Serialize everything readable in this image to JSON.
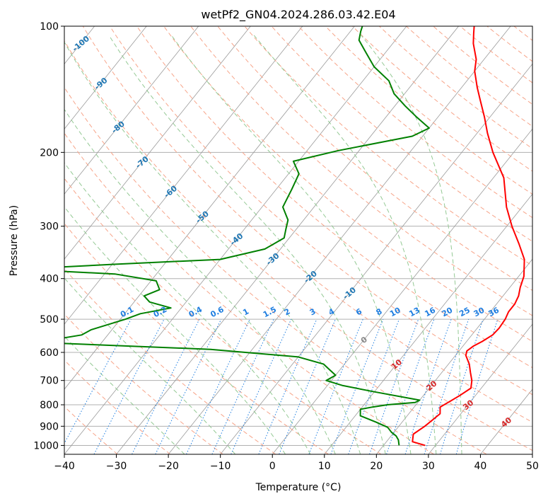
{
  "chart_data": {
    "type": "line",
    "diagram": "skew-T log-P",
    "title": "wetPf2_GN04.2024.286.03.42.E04",
    "xlabel": "Temperature (°C)",
    "ylabel": "Pressure (hPa)",
    "xlim": [
      -40,
      50
    ],
    "ylim": [
      1050,
      100
    ],
    "y_scale": "log",
    "x_ticks": [
      "−40",
      "−30",
      "−20",
      "−10",
      "0",
      "10",
      "20",
      "30",
      "40",
      "50"
    ],
    "y_ticks": [
      "100",
      "200",
      "300",
      "400",
      "500",
      "600",
      "700",
      "800",
      "900",
      "1000"
    ],
    "grid": true,
    "series": [
      {
        "color": "#ff0000",
        "points": [
          [
            28,
            1000
          ],
          [
            25,
            980
          ],
          [
            24.5,
            960
          ],
          [
            24,
            940
          ],
          [
            25,
            900
          ],
          [
            25.5,
            870
          ],
          [
            26,
            840
          ],
          [
            25,
            810
          ],
          [
            26,
            785
          ],
          [
            27,
            760
          ],
          [
            28,
            730
          ],
          [
            27,
            700
          ],
          [
            25.5,
            670
          ],
          [
            24,
            640
          ],
          [
            22,
            610
          ],
          [
            21.5,
            595
          ],
          [
            22,
            580
          ],
          [
            23,
            565
          ],
          [
            24,
            545
          ],
          [
            24.2,
            525
          ],
          [
            24,
            500
          ],
          [
            23.5,
            480
          ],
          [
            23.5,
            460
          ],
          [
            23,
            440
          ],
          [
            22,
            420
          ],
          [
            21,
            395
          ],
          [
            18.5,
            360
          ],
          [
            15,
            330
          ],
          [
            11,
            300
          ],
          [
            7,
            270
          ],
          [
            2,
            230
          ],
          [
            -4,
            200
          ],
          [
            -8,
            180
          ],
          [
            -11,
            165
          ],
          [
            -14.5,
            150
          ],
          [
            -17,
            140
          ],
          [
            -20,
            128
          ],
          [
            -21.5,
            120
          ],
          [
            -24.5,
            110
          ],
          [
            -26,
            104
          ],
          [
            -27,
            100
          ]
        ]
      },
      {
        "color": "#008000",
        "points": [
          [
            23,
            1000
          ],
          [
            22,
            970
          ],
          [
            21,
            950
          ],
          [
            19.5,
            930
          ],
          [
            18,
            905
          ],
          [
            15,
            880
          ],
          [
            11,
            850
          ],
          [
            10,
            820
          ],
          [
            12,
            810
          ],
          [
            14.5,
            800
          ],
          [
            19.5,
            790
          ],
          [
            20,
            780
          ],
          [
            10,
            745
          ],
          [
            3,
            720
          ],
          [
            -1,
            700
          ],
          [
            0,
            680
          ],
          [
            -2,
            660
          ],
          [
            -4,
            640
          ],
          [
            -10,
            615
          ],
          [
            -28,
            590
          ],
          [
            -59,
            570
          ],
          [
            -60,
            560
          ],
          [
            -55,
            545
          ],
          [
            -54,
            530
          ],
          [
            -49,
            500
          ],
          [
            -47,
            485
          ],
          [
            -42,
            470
          ],
          [
            -47,
            455
          ],
          [
            -49,
            440
          ],
          [
            -47,
            425
          ],
          [
            -49,
            405
          ],
          [
            -58,
            390
          ],
          [
            -77,
            380
          ],
          [
            -60,
            370
          ],
          [
            -40,
            360
          ],
          [
            -33,
            340
          ],
          [
            -31,
            320
          ],
          [
            -32,
            305
          ],
          [
            -33,
            290
          ],
          [
            -36,
            270
          ],
          [
            -37,
            245
          ],
          [
            -38,
            225
          ],
          [
            -41,
            210
          ],
          [
            -34,
            198
          ],
          [
            -22,
            183
          ],
          [
            -20,
            175
          ],
          [
            -24,
            165
          ],
          [
            -28,
            155
          ],
          [
            -32,
            145
          ],
          [
            -35,
            135
          ],
          [
            -40,
            125
          ],
          [
            -44,
            115
          ],
          [
            -47,
            108
          ],
          [
            -48,
            103
          ],
          [
            -48.5,
            100
          ]
        ]
      }
    ],
    "isotherm_spacing_C": 10,
    "dry_adiabats_theta_K": [
      190,
      200,
      210,
      220,
      230,
      240,
      250,
      260,
      270,
      280,
      290,
      300,
      310,
      320,
      330,
      340,
      350,
      360,
      370,
      380,
      390,
      400,
      410,
      420,
      430,
      440,
      450,
      460,
      470,
      480,
      490,
      500,
      510,
      520,
      530,
      540,
      550,
      560,
      570,
      580,
      590,
      600,
      610,
      620,
      630,
      640,
      650
    ],
    "moist_adiabats_thetaw_C": [
      -20,
      -10,
      0,
      5,
      10,
      15,
      20,
      25,
      30,
      35
    ],
    "mixing_ratio_lines_gkg": [
      "0.1",
      "0.2",
      "0.4",
      "0.6",
      "1",
      "1.5",
      "2",
      "3",
      "4",
      "6",
      "8",
      "10",
      "13",
      "16",
      "20",
      "25",
      "30",
      "36"
    ],
    "isotherm_labels": [
      "-100",
      "-90",
      "-80",
      "-70",
      "-60",
      "-50",
      "-40",
      "-30",
      "-20",
      "-10",
      "0",
      "10",
      "20",
      "30",
      "40"
    ]
  },
  "colors": {
    "temperature": "#ff0000",
    "dewpoint": "#008000",
    "grid": "#b0b0b0",
    "skew_isotherm": "#9a9a9a",
    "dry_adiabat": "#f7a58a",
    "moist_adiabat": "#94c994",
    "mixing_ratio": "#1f7ee0",
    "isotherm_label_cold": "#1f77b4",
    "isotherm_label_warm": "#d62728",
    "isotherm_label_zero": "#888888"
  }
}
